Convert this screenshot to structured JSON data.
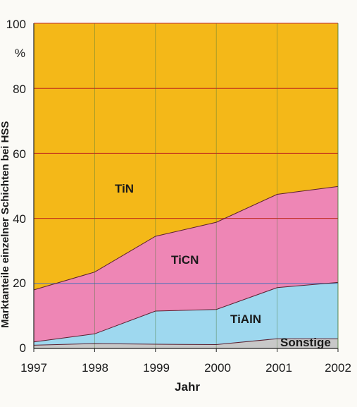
{
  "chart_data": {
    "type": "area",
    "stacked": true,
    "x": [
      1997,
      1998,
      1999,
      2000,
      2001,
      2002
    ],
    "xlim": [
      1997,
      2002
    ],
    "ylim": [
      0,
      100
    ],
    "y_ticks": [
      "0",
      "20",
      "40",
      "60",
      "80",
      "100"
    ],
    "x_ticks": [
      "1997",
      "1998",
      "1999",
      "2000",
      "2001",
      "2002"
    ],
    "xlabel": "Jahr",
    "ylabel": "Marktanteile einzelner Schichten bei HSS",
    "y_unit": "%",
    "grid": true,
    "series": [
      {
        "name": "Sonstige",
        "values": [
          1,
          1.5,
          1.3,
          1.2,
          3,
          3
        ],
        "color": "#c8c8c8"
      },
      {
        "name": "TiAlN",
        "values": [
          1,
          3,
          10.2,
          10.8,
          15.7,
          17.3
        ],
        "color": "#9ed8ef"
      },
      {
        "name": "TiCN",
        "values": [
          16,
          19,
          23,
          26.8,
          28.7,
          29.5
        ],
        "color": "#ee86b5"
      },
      {
        "name": "TiN",
        "values": [
          82,
          76.5,
          65.5,
          61.2,
          52.6,
          50.2
        ],
        "color": "#f4b818"
      }
    ]
  }
}
